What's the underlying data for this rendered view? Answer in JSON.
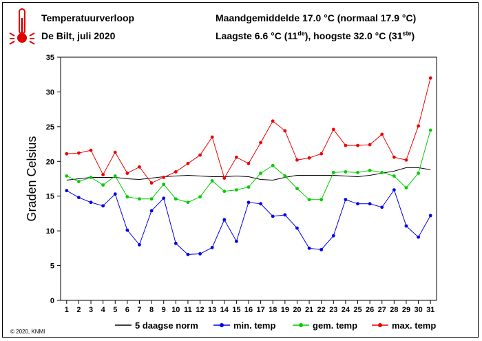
{
  "header": {
    "title": "Temperatuurverloop",
    "subtitle": "De Bilt, juli 2020",
    "monthly_avg": "Maandgemiddelde 17.0 °C (normaal 17.9 °C)",
    "extremes_pre": "Laagste 6.6 °C (11",
    "extremes_sup1": "de",
    "extremes_mid": "), hoogste 32.0 °C (31",
    "extremes_sup2": "ste",
    "extremes_post": ")"
  },
  "credit": "© 2020, KNMI",
  "icon": "thermometer-icon",
  "chart_data": {
    "type": "line",
    "ylabel": "Graden Celsius",
    "xlabel": "",
    "ylim": [
      0,
      35
    ],
    "yticks": [
      0,
      5,
      10,
      15,
      20,
      25,
      30,
      35
    ],
    "x": [
      1,
      2,
      3,
      4,
      5,
      6,
      7,
      8,
      9,
      10,
      11,
      12,
      13,
      14,
      15,
      16,
      17,
      18,
      19,
      20,
      21,
      22,
      23,
      24,
      25,
      26,
      27,
      28,
      29,
      30,
      31
    ],
    "grid": false,
    "legend_position": "bottom",
    "series": [
      {
        "name": "5 daagse norm",
        "color": "#000000",
        "marker": false,
        "values": [
          17.3,
          17.5,
          17.7,
          17.7,
          17.7,
          17.5,
          17.4,
          17.6,
          17.8,
          17.9,
          18.0,
          17.9,
          17.8,
          17.8,
          17.9,
          17.8,
          17.4,
          17.3,
          17.7,
          18.0,
          18.0,
          18.0,
          18.0,
          17.9,
          17.8,
          18.0,
          18.3,
          18.6,
          19.1,
          19.1,
          18.8
        ]
      },
      {
        "name": "min. temp",
        "color": "#0000ee",
        "marker": true,
        "values": [
          15.8,
          14.8,
          14.1,
          13.6,
          15.3,
          10.1,
          8.0,
          12.9,
          14.7,
          8.2,
          6.6,
          6.7,
          7.6,
          11.6,
          8.5,
          14.1,
          13.9,
          12.1,
          12.3,
          10.4,
          7.5,
          7.3,
          9.3,
          14.5,
          13.9,
          13.9,
          13.4,
          15.9,
          10.7,
          9.1,
          12.2
        ]
      },
      {
        "name": "gem. temp",
        "color": "#00cc00",
        "marker": true,
        "values": [
          17.9,
          17.1,
          17.7,
          16.6,
          17.9,
          14.9,
          14.6,
          14.6,
          16.7,
          14.6,
          14.1,
          14.9,
          17.2,
          15.7,
          15.9,
          16.3,
          18.3,
          19.4,
          17.9,
          16.1,
          14.5,
          14.5,
          18.4,
          18.5,
          18.4,
          18.7,
          18.4,
          17.9,
          16.2,
          18.3,
          24.5
        ]
      },
      {
        "name": "max. temp",
        "color": "#ee0000",
        "marker": true,
        "values": [
          21.1,
          21.2,
          21.6,
          18.1,
          21.3,
          18.3,
          19.2,
          16.9,
          17.7,
          18.5,
          19.7,
          20.9,
          23.5,
          17.6,
          20.6,
          19.7,
          22.7,
          25.8,
          24.4,
          20.2,
          20.5,
          21.1,
          24.6,
          22.3,
          22.3,
          22.4,
          23.9,
          20.6,
          20.2,
          25.1,
          32.0
        ]
      }
    ]
  }
}
